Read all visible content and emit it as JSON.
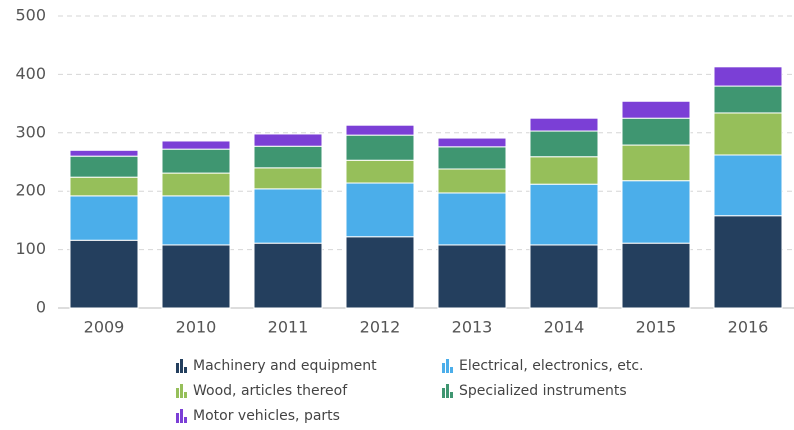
{
  "chart_data": {
    "type": "stacked_bar",
    "categories": [
      "2009",
      "2010",
      "2011",
      "2012",
      "2013",
      "2014",
      "2015",
      "2016"
    ],
    "series": [
      {
        "name": "Machinery and equipment",
        "color": "#243f5e",
        "values": [
          116,
          108,
          111,
          122,
          108,
          108,
          111,
          158
        ]
      },
      {
        "name": "Electrical, electronics, etc.",
        "color": "#4baeea",
        "values": [
          76,
          84,
          93,
          92,
          89,
          104,
          107,
          104
        ]
      },
      {
        "name": "Wood, articles thereof",
        "color": "#96bf5a",
        "values": [
          32,
          39,
          36,
          39,
          41,
          47,
          61,
          72
        ]
      },
      {
        "name": "Specialized instruments",
        "color": "#3f9671",
        "values": [
          36,
          41,
          37,
          43,
          38,
          44,
          46,
          46
        ]
      },
      {
        "name": "Motor vehicles, parts",
        "color": "#7b3fd6",
        "values": [
          10,
          14,
          21,
          17,
          15,
          22,
          29,
          33
        ]
      }
    ],
    "ylim": [
      0,
      500
    ],
    "yticks": [
      0,
      100,
      200,
      300,
      400,
      500
    ],
    "grid": true
  }
}
